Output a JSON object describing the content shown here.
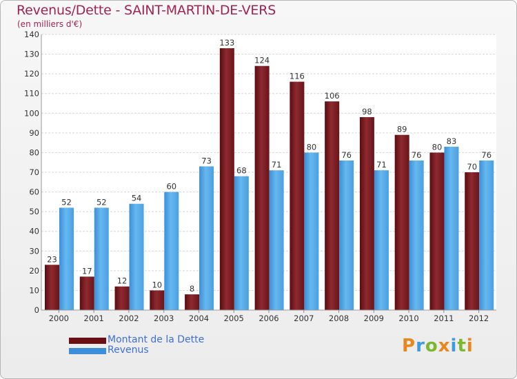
{
  "header": {
    "title": "Revenus/Dette - SAINT-MARTIN-DE-VERS",
    "subtitle": "(en milliers d'€)"
  },
  "chart_data": {
    "type": "bar",
    "categories": [
      "2000",
      "2001",
      "2002",
      "2003",
      "2004",
      "2005",
      "2006",
      "2007",
      "2008",
      "2009",
      "2010",
      "2011",
      "2012"
    ],
    "series": [
      {
        "name": "Montant de la Dette",
        "values": [
          23,
          17,
          12,
          10,
          8,
          133,
          124,
          116,
          106,
          98,
          89,
          80,
          70
        ],
        "color": "#7b1f24"
      },
      {
        "name": "Revenus",
        "values": [
          52,
          52,
          54,
          60,
          73,
          68,
          71,
          80,
          76,
          71,
          76,
          83,
          76
        ],
        "color": "#4ea6e6"
      }
    ],
    "ylim": [
      0,
      140
    ],
    "yticks": [
      0,
      10,
      20,
      30,
      40,
      50,
      60,
      70,
      80,
      90,
      100,
      110,
      120,
      130,
      140
    ],
    "grid": true,
    "legend": "bottom-left",
    "show_value_labels": true
  },
  "legend": {
    "items": [
      {
        "label": "Montant de la Dette",
        "color": "#6b0f14"
      },
      {
        "label": "Revenus",
        "color": "#3d8fdc"
      }
    ]
  },
  "logo": {
    "text": "Proxiti",
    "colors": [
      "#e8871e",
      "#3d9be0",
      "#7cb82f",
      "#e8871e",
      "#3d9be0",
      "#7cb82f",
      "#e8871e"
    ]
  }
}
